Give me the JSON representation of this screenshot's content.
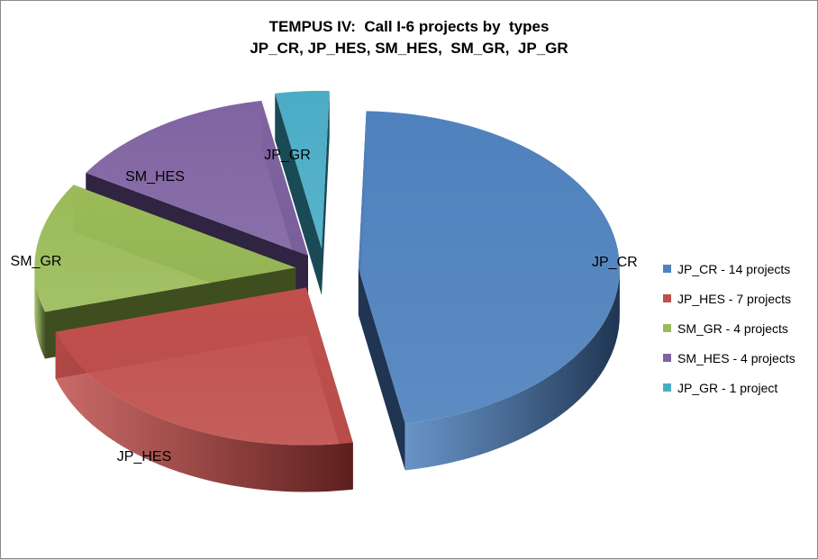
{
  "chart_data": {
    "type": "pie",
    "title_lines": [
      "TEMPUS IV:  Call I-6 projects by  types",
      "JP_CR, JP_HES, SM_HES,  SM_GR,  JP_GR"
    ],
    "slices": [
      {
        "label": "JP_CR",
        "value": 14,
        "legend": "JP_CR - 14 projects",
        "color": "#4F81BD",
        "side_color": "#1F3552"
      },
      {
        "label": "JP_HES",
        "value": 7,
        "legend": "JP_HES - 7 projects",
        "color": "#C0504D",
        "side_color": "#5C1F1D"
      },
      {
        "label": "SM_GR",
        "value": 4,
        "legend": "SM_GR - 4 projects",
        "color": "#9BBB59",
        "side_color": "#3E4E1F"
      },
      {
        "label": "SM_HES",
        "value": 4,
        "legend": "SM_HES - 4 projects",
        "color": "#8064A2",
        "side_color": "#2F2442"
      },
      {
        "label": "JP_GR",
        "value": 1,
        "legend": "JP_GR - 1 project",
        "color": "#4BACC6",
        "side_color": "#1B4A57"
      }
    ],
    "exploded": true,
    "three_d": true,
    "legend_position": "right"
  }
}
